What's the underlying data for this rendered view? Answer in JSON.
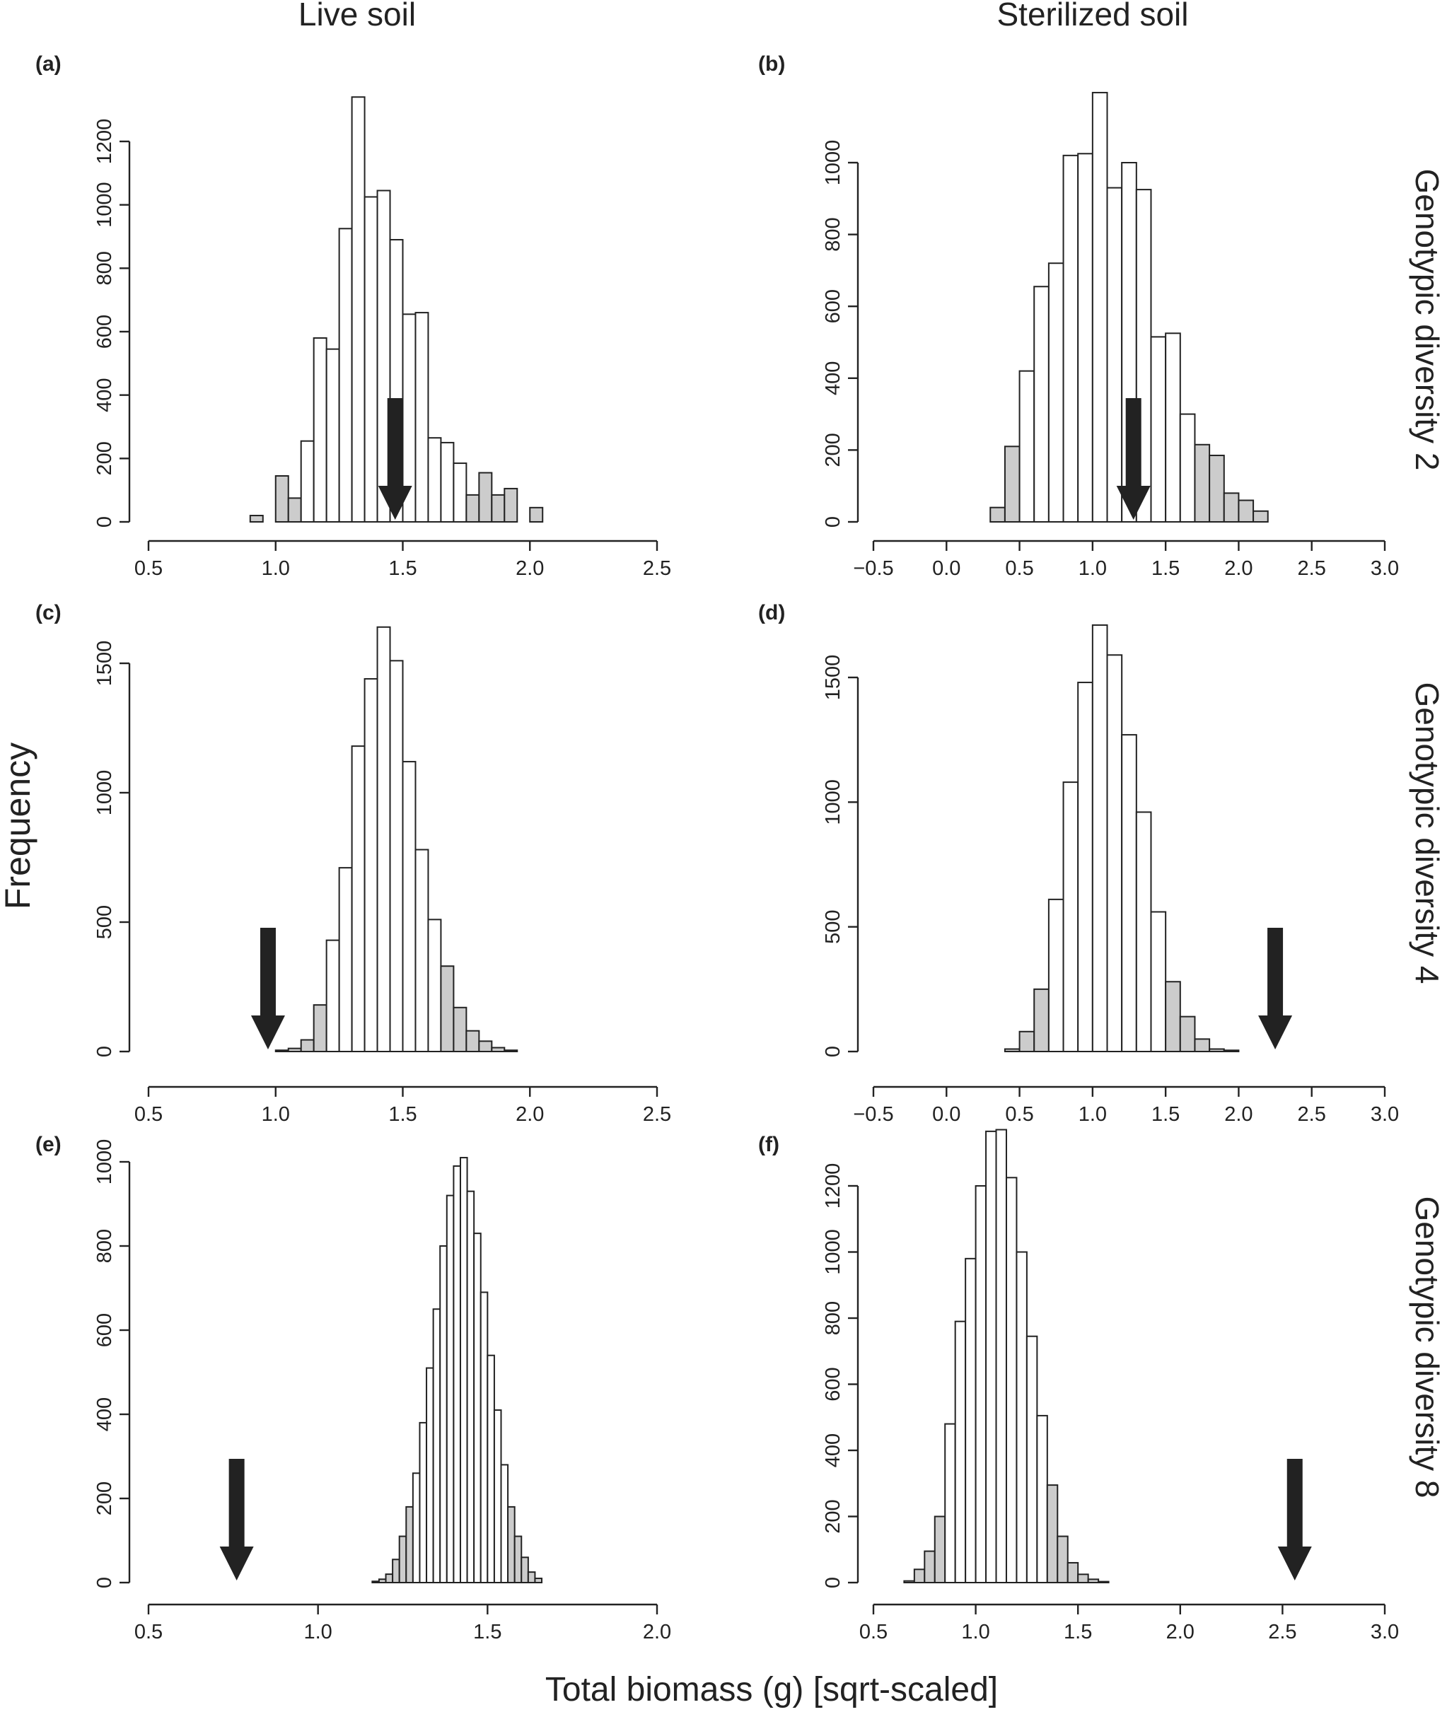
{
  "column_titles": [
    "Live soil",
    "Sterilized soil"
  ],
  "row_labels": [
    "Genotypic diversity 2",
    "Genotypic diversity 4",
    "Genotypic diversity 8"
  ],
  "y_axis_label": "Frequency",
  "x_axis_label": "Total biomass (g) [sqrt-scaled]",
  "colors": {
    "bar_fill": "#ffffff",
    "tail_fill": "#cccccc",
    "outline": "#222222",
    "arrow": "#222222"
  },
  "chart_data": [
    {
      "panel": "(a)",
      "type": "bar",
      "subtype": "histogram",
      "column": "Live soil",
      "row": "Genotypic diversity 2",
      "xlim": [
        0.5,
        2.5
      ],
      "xticks": [
        0.5,
        1.0,
        1.5,
        2.0,
        2.5
      ],
      "ylim": [
        0,
        1200
      ],
      "yticks": [
        0,
        200,
        400,
        600,
        800,
        1000,
        1200
      ],
      "bin_start": 0.9,
      "bin_width": 0.05,
      "values": [
        20,
        0,
        145,
        75,
        255,
        580,
        545,
        925,
        1340,
        1025,
        1045,
        890,
        655,
        660,
        265,
        250,
        185,
        85,
        155,
        85,
        105,
        0,
        45
      ],
      "tail": [
        1,
        1,
        1,
        1,
        0,
        0,
        0,
        0,
        0,
        0,
        0,
        0,
        0,
        0,
        0,
        0,
        0,
        1,
        1,
        1,
        1,
        1,
        1
      ],
      "arrow_x": 1.47
    },
    {
      "panel": "(b)",
      "type": "bar",
      "subtype": "histogram",
      "column": "Sterilized soil",
      "row": "Genotypic diversity 2",
      "xlim": [
        -0.5,
        3.0
      ],
      "xticks": [
        -0.5,
        0.0,
        0.5,
        1.0,
        1.5,
        2.0,
        2.5,
        3.0
      ],
      "ylim": [
        0,
        1000
      ],
      "yticks": [
        0,
        200,
        400,
        600,
        800,
        1000
      ],
      "bin_start": 0.3,
      "bin_width": 0.1,
      "values": [
        40,
        210,
        420,
        655,
        720,
        1020,
        1025,
        1195,
        930,
        1000,
        925,
        515,
        525,
        300,
        215,
        185,
        80,
        60,
        30
      ],
      "tail": [
        1,
        1,
        0,
        0,
        0,
        0,
        0,
        0,
        0,
        0,
        0,
        0,
        0,
        0,
        1,
        1,
        1,
        1,
        1
      ],
      "arrow_x": 1.28
    },
    {
      "panel": "(c)",
      "type": "bar",
      "subtype": "histogram",
      "column": "Live soil",
      "row": "Genotypic diversity 4",
      "xlim": [
        0.5,
        2.5
      ],
      "xticks": [
        0.5,
        1.0,
        1.5,
        2.0,
        2.5
      ],
      "ylim": [
        0,
        1500
      ],
      "yticks": [
        0,
        500,
        1000,
        1500
      ],
      "bin_start": 1.0,
      "bin_width": 0.05,
      "values": [
        5,
        12,
        45,
        180,
        430,
        710,
        1180,
        1440,
        1640,
        1510,
        1120,
        780,
        510,
        330,
        170,
        80,
        40,
        15,
        5
      ],
      "tail": [
        1,
        1,
        1,
        1,
        0,
        0,
        0,
        0,
        0,
        0,
        0,
        0,
        0,
        1,
        1,
        1,
        1,
        1,
        1
      ],
      "arrow_x": 0.97
    },
    {
      "panel": "(d)",
      "type": "bar",
      "subtype": "histogram",
      "column": "Sterilized soil",
      "row": "Genotypic diversity 4",
      "xlim": [
        -0.5,
        3.0
      ],
      "xticks": [
        -0.5,
        0.0,
        0.5,
        1.0,
        1.5,
        2.0,
        2.5,
        3.0
      ],
      "ylim": [
        0,
        1500
      ],
      "yticks": [
        0,
        500,
        1000,
        1500
      ],
      "bin_start": 0.4,
      "bin_width": 0.1,
      "values": [
        10,
        80,
        250,
        610,
        1080,
        1480,
        1710,
        1590,
        1270,
        960,
        560,
        280,
        140,
        50,
        10,
        5
      ],
      "tail": [
        1,
        1,
        1,
        0,
        0,
        0,
        0,
        0,
        0,
        0,
        0,
        1,
        1,
        1,
        1,
        1
      ],
      "arrow_x": 2.25
    },
    {
      "panel": "(e)",
      "type": "bar",
      "subtype": "histogram",
      "column": "Live soil",
      "row": "Genotypic diversity 8",
      "xlim": [
        0.5,
        2.0
      ],
      "xticks": [
        0.5,
        1.0,
        1.5,
        2.0
      ],
      "ylim": [
        0,
        1000
      ],
      "yticks": [
        0,
        200,
        400,
        600,
        800,
        1000
      ],
      "bin_start": 1.16,
      "bin_width": 0.02,
      "values": [
        3,
        8,
        20,
        55,
        110,
        180,
        260,
        380,
        510,
        650,
        800,
        920,
        990,
        1010,
        930,
        830,
        690,
        540,
        410,
        280,
        180,
        110,
        60,
        25,
        10
      ],
      "tail": [
        1,
        1,
        1,
        1,
        1,
        1,
        0,
        0,
        0,
        0,
        0,
        0,
        0,
        0,
        0,
        0,
        0,
        0,
        0,
        0,
        1,
        1,
        1,
        1,
        1
      ],
      "arrow_x": 0.76
    },
    {
      "panel": "(f)",
      "type": "bar",
      "subtype": "histogram",
      "column": "Sterilized soil",
      "row": "Genotypic diversity 8",
      "xlim": [
        0.5,
        3.0
      ],
      "xticks": [
        0.5,
        1.0,
        1.5,
        2.0,
        2.5,
        3.0
      ],
      "ylim": [
        0,
        1200
      ],
      "yticks": [
        0,
        200,
        400,
        600,
        800,
        1000,
        1200
      ],
      "bin_start": 0.65,
      "bin_width": 0.05,
      "values": [
        5,
        40,
        95,
        200,
        480,
        790,
        980,
        1200,
        1365,
        1370,
        1225,
        1000,
        745,
        505,
        295,
        140,
        60,
        25,
        10,
        3
      ],
      "tail": [
        1,
        1,
        1,
        1,
        0,
        0,
        0,
        0,
        0,
        0,
        0,
        0,
        0,
        0,
        1,
        1,
        1,
        1,
        1,
        1
      ],
      "arrow_x": 2.56
    }
  ]
}
